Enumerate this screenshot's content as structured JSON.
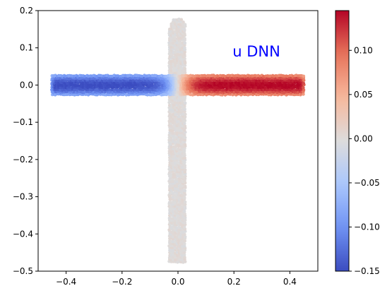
{
  "chart_data": {
    "type": "scatter",
    "annotation": "u DNN",
    "annotation_color": "#0000ff",
    "colormap": "coolwarm",
    "colormap_stops": [
      "#3b4cc0",
      "#6f92f3",
      "#aac7fd",
      "#dddcdc",
      "#f7b89c",
      "#e7745b",
      "#b40426"
    ],
    "xlim": [
      -0.5,
      0.5
    ],
    "ylim": [
      -0.5,
      0.2
    ],
    "xticks": [
      -0.4,
      -0.2,
      0.0,
      0.2,
      0.4
    ],
    "yticks": [
      -0.5,
      -0.4,
      -0.3,
      -0.2,
      -0.1,
      0.0,
      0.1,
      0.2
    ],
    "xtick_labels": [
      "−0.4",
      "−0.2",
      "0.0",
      "0.2",
      "0.4"
    ],
    "ytick_labels": [
      "−0.5",
      "−0.4",
      "−0.3",
      "−0.2",
      "−0.1",
      "0.0",
      "0.1",
      "0.2"
    ],
    "colorbar": {
      "range": [
        -0.15,
        0.145
      ],
      "ticks": [
        -0.15,
        -0.1,
        -0.05,
        0.0,
        0.05,
        0.1
      ],
      "tick_labels": [
        "−0.15",
        "−0.10",
        "−0.05",
        "0.00",
        "0.05",
        "0.10"
      ]
    },
    "field": {
      "horizontal_channel": {
        "x_range": [
          -0.45,
          0.45
        ],
        "y_range": [
          -0.025,
          0.025
        ],
        "u_min": -0.15,
        "u_max": 0.145
      },
      "vertical_channel": {
        "x_range": [
          -0.03,
          0.03
        ],
        "y_range": [
          -0.475,
          0.15
        ],
        "u_approx": 0.0
      }
    },
    "grid": false
  }
}
